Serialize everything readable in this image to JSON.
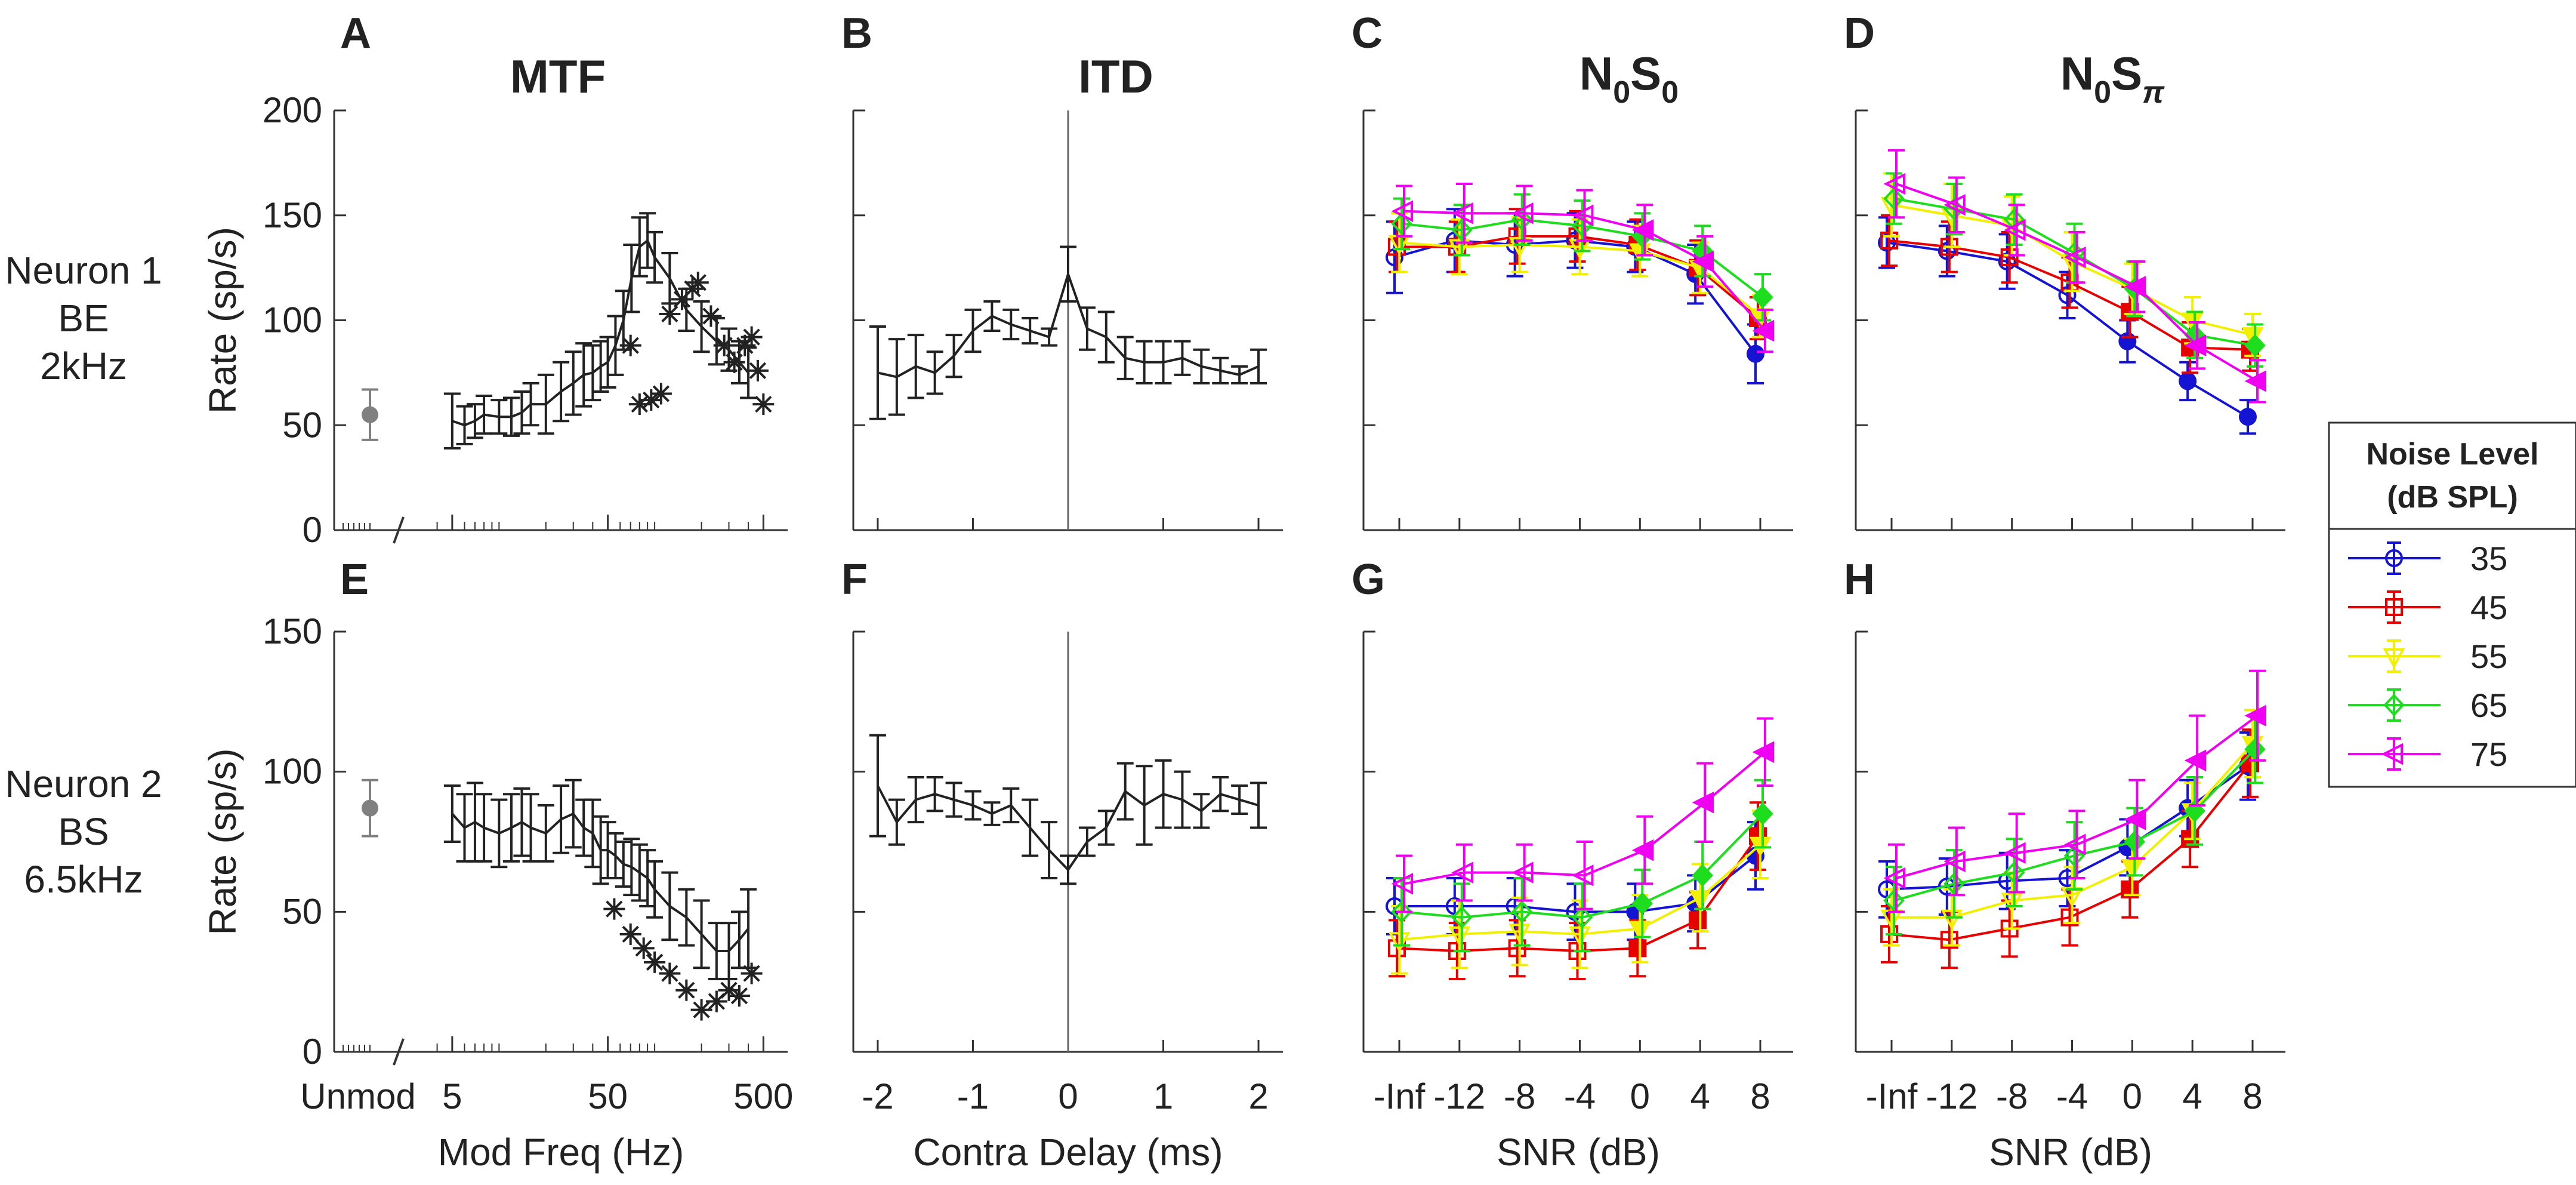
{
  "figure": {
    "row_labels": [
      [
        "Neuron 1",
        "BE",
        "2kHz"
      ],
      [
        "Neuron 2",
        "BS",
        "6.5kHz"
      ]
    ],
    "panel_titles": {
      "mtf": "MTF",
      "itd": "ITD",
      "n0s0": "N0S0",
      "n0spi": "N0Sπ"
    }
  },
  "legend": {
    "title_line1": "Noise Level",
    "title_line2": "(dB SPL)",
    "entries": [
      {
        "label": "35",
        "color": "#1414d2",
        "marker": "circle"
      },
      {
        "label": "45",
        "color": "#e60000",
        "marker": "square"
      },
      {
        "label": "55",
        "color": "#f0f000",
        "marker": "triangle-down"
      },
      {
        "label": "65",
        "color": "#1edc1e",
        "marker": "diamond"
      },
      {
        "label": "75",
        "color": "#f000f0",
        "marker": "triangle-left"
      }
    ]
  },
  "chart_data": [
    {
      "panel": "A",
      "type": "line",
      "title": "MTF",
      "ylabel": "Rate (sp/s)",
      "xlabel": "",
      "xscale": "log",
      "xlim": [
        1,
        600
      ],
      "ylim": [
        0,
        200
      ],
      "yticks": [
        0,
        50,
        100,
        150,
        200
      ],
      "unmod": {
        "value": 55,
        "err": 12,
        "color": "#808080"
      },
      "x": [
        5,
        6,
        7,
        8,
        10,
        12,
        14,
        16,
        20,
        25,
        30,
        35,
        40,
        45,
        50,
        56,
        63,
        71,
        80,
        90,
        100,
        125,
        160,
        200,
        250,
        300,
        350,
        400
      ],
      "values": [
        52,
        50,
        52,
        55,
        54,
        54,
        56,
        60,
        60,
        66,
        70,
        74,
        75,
        78,
        80,
        88,
        100,
        120,
        135,
        138,
        130,
        120,
        105,
        97,
        90,
        86,
        80,
        75
      ],
      "errors": [
        13,
        9,
        8,
        9,
        8,
        9,
        10,
        10,
        14,
        14,
        15,
        15,
        13,
        12,
        12,
        14,
        14,
        16,
        14,
        13,
        12,
        12,
        10,
        12,
        11,
        10,
        10,
        12
      ],
      "sig_x": [
        70,
        80,
        95,
        110,
        125,
        150,
        175,
        190,
        230,
        280,
        325,
        380,
        420,
        460,
        500
      ],
      "sig_y": [
        88,
        60,
        62,
        65,
        103,
        110,
        115,
        118,
        102,
        88,
        80,
        88,
        92,
        76,
        60
      ]
    },
    {
      "panel": "B",
      "type": "line",
      "title": "ITD",
      "ylabel": "",
      "xlabel": "",
      "xlim": [
        -2.1,
        2.1
      ],
      "ylim": [
        0,
        200
      ],
      "vline": 0,
      "x": [
        -2.0,
        -1.8,
        -1.6,
        -1.4,
        -1.2,
        -1.0,
        -0.8,
        -0.6,
        -0.4,
        -0.2,
        0.0,
        0.2,
        0.4,
        0.6,
        0.8,
        1.0,
        1.2,
        1.4,
        1.6,
        1.8,
        2.0
      ],
      "values": [
        75,
        73,
        78,
        75,
        83,
        95,
        102,
        98,
        95,
        92,
        122,
        96,
        92,
        82,
        80,
        80,
        82,
        78,
        76,
        74,
        78
      ],
      "errors": [
        22,
        18,
        15,
        10,
        10,
        10,
        7,
        7,
        6,
        4,
        13,
        10,
        12,
        10,
        10,
        10,
        8,
        8,
        6,
        4,
        8
      ]
    },
    {
      "panel": "C",
      "type": "line",
      "title": "N0S0",
      "xlabel": "",
      "categories": [
        "-Inf",
        "-12",
        "-8",
        "-4",
        "0",
        "4",
        "8"
      ],
      "ylim": [
        0,
        200
      ],
      "series": [
        {
          "name": "35",
          "values": [
            130,
            138,
            136,
            138,
            135,
            122,
            84
          ],
          "errors": [
            17,
            15,
            15,
            13,
            12,
            14,
            14
          ]
        },
        {
          "name": "45",
          "values": [
            135,
            135,
            140,
            140,
            136,
            125,
            101
          ],
          "errors": [
            12,
            12,
            13,
            12,
            12,
            13,
            10
          ]
        },
        {
          "name": "55",
          "values": [
            137,
            135,
            136,
            135,
            133,
            125,
            102
          ],
          "errors": [
            14,
            13,
            13,
            13,
            12,
            12,
            10
          ]
        },
        {
          "name": "65",
          "values": [
            146,
            143,
            148,
            145,
            140,
            133,
            111
          ],
          "errors": [
            12,
            12,
            12,
            12,
            11,
            12,
            11
          ]
        },
        {
          "name": "75",
          "values": [
            152,
            151,
            151,
            150,
            143,
            128,
            95
          ],
          "errors": [
            12,
            14,
            13,
            12,
            12,
            12,
            10
          ]
        }
      ]
    },
    {
      "panel": "D",
      "type": "line",
      "title": "N0Sπ",
      "xlabel": "",
      "categories": [
        "-Inf",
        "-12",
        "-8",
        "-4",
        "0",
        "4",
        "8"
      ],
      "ylim": [
        0,
        200
      ],
      "series": [
        {
          "name": "35",
          "values": [
            137,
            133,
            128,
            112,
            90,
            71,
            54
          ],
          "errors": [
            12,
            12,
            13,
            11,
            10,
            9,
            8
          ]
        },
        {
          "name": "45",
          "values": [
            138,
            135,
            130,
            118,
            104,
            87,
            86
          ],
          "errors": [
            12,
            12,
            12,
            12,
            12,
            12,
            10
          ]
        },
        {
          "name": "55",
          "values": [
            155,
            150,
            145,
            128,
            115,
            100,
            93
          ],
          "errors": [
            15,
            15,
            14,
            14,
            12,
            11,
            10
          ]
        },
        {
          "name": "65",
          "values": [
            158,
            153,
            148,
            132,
            115,
            93,
            88
          ],
          "errors": [
            12,
            12,
            12,
            14,
            13,
            11,
            10
          ]
        },
        {
          "name": "75",
          "values": [
            165,
            155,
            143,
            130,
            116,
            88,
            71
          ],
          "errors": [
            16,
            13,
            12,
            12,
            12,
            11,
            10
          ]
        }
      ]
    },
    {
      "panel": "E",
      "type": "line",
      "ylabel": "Rate (sp/s)",
      "xlabel": "Mod Freq (Hz)",
      "xscale": "log",
      "xlim": [
        1,
        600
      ],
      "ylim": [
        0,
        150
      ],
      "yticks": [
        0,
        50,
        100,
        150
      ],
      "xticklabels": [
        "Unmod",
        "5",
        "50",
        "500"
      ],
      "unmod": {
        "value": 87,
        "err": 10,
        "color": "#808080"
      },
      "x": [
        5,
        6,
        7,
        8,
        10,
        12,
        14,
        16,
        20,
        25,
        30,
        35,
        40,
        45,
        50,
        56,
        63,
        71,
        80,
        90,
        100,
        125,
        160,
        200,
        250,
        300,
        350,
        400
      ],
      "values": [
        85,
        80,
        82,
        80,
        78,
        80,
        82,
        80,
        78,
        83,
        85,
        80,
        78,
        72,
        72,
        70,
        67,
        66,
        64,
        62,
        58,
        52,
        48,
        42,
        36,
        36,
        40,
        44
      ],
      "errors": [
        10,
        12,
        14,
        12,
        12,
        12,
        12,
        12,
        10,
        12,
        12,
        10,
        12,
        12,
        10,
        8,
        8,
        10,
        10,
        10,
        10,
        12,
        10,
        12,
        10,
        10,
        10,
        14
      ],
      "sig_x": [
        55,
        70,
        85,
        100,
        125,
        160,
        200,
        250,
        300,
        350,
        420
      ],
      "sig_y": [
        51,
        42,
        37,
        32,
        28,
        22,
        15,
        18,
        22,
        20,
        28
      ]
    },
    {
      "panel": "F",
      "type": "line",
      "ylabel": "",
      "xlabel": "Contra Delay (ms)",
      "xlim": [
        -2.1,
        2.1
      ],
      "ylim": [
        0,
        150
      ],
      "vline": 0,
      "xticks": [
        -2,
        -1,
        0,
        1,
        2
      ],
      "x": [
        -2.0,
        -1.8,
        -1.6,
        -1.4,
        -1.2,
        -1.0,
        -0.8,
        -0.6,
        -0.4,
        -0.2,
        0.0,
        0.2,
        0.4,
        0.6,
        0.8,
        1.0,
        1.2,
        1.4,
        1.6,
        1.8,
        2.0
      ],
      "values": [
        95,
        82,
        90,
        92,
        90,
        88,
        85,
        88,
        80,
        72,
        65,
        75,
        80,
        93,
        88,
        92,
        90,
        86,
        92,
        90,
        88
      ],
      "errors": [
        18,
        8,
        8,
        6,
        6,
        5,
        4,
        6,
        10,
        10,
        5,
        5,
        6,
        10,
        14,
        12,
        10,
        6,
        6,
        5,
        8
      ]
    },
    {
      "panel": "G",
      "type": "line",
      "xlabel": "SNR (dB)",
      "categories": [
        "-Inf",
        "-12",
        "-8",
        "-4",
        "0",
        "4",
        "8"
      ],
      "ylim": [
        0,
        150
      ],
      "series": [
        {
          "name": "35",
          "values": [
            52,
            52,
            52,
            50,
            50,
            53,
            70
          ],
          "errors": [
            10,
            10,
            10,
            10,
            10,
            10,
            12
          ]
        },
        {
          "name": "45",
          "values": [
            37,
            36,
            37,
            36,
            37,
            47,
            77
          ],
          "errors": [
            10,
            10,
            10,
            10,
            10,
            10,
            12
          ]
        },
        {
          "name": "55",
          "values": [
            40,
            42,
            43,
            42,
            44,
            55,
            74
          ],
          "errors": [
            12,
            12,
            12,
            12,
            12,
            12,
            12
          ]
        },
        {
          "name": "65",
          "values": [
            50,
            48,
            50,
            48,
            53,
            63,
            85
          ],
          "errors": [
            12,
            12,
            12,
            12,
            12,
            12,
            12
          ]
        },
        {
          "name": "75",
          "values": [
            60,
            64,
            64,
            63,
            72,
            89,
            107
          ],
          "errors": [
            10,
            10,
            10,
            12,
            12,
            14,
            12
          ]
        }
      ]
    },
    {
      "panel": "H",
      "type": "line",
      "xlabel": "SNR (dB)",
      "categories": [
        "-Inf",
        "-12",
        "-8",
        "-4",
        "0",
        "4",
        "8"
      ],
      "ylim": [
        0,
        150
      ],
      "series": [
        {
          "name": "35",
          "values": [
            58,
            59,
            61,
            62,
            73,
            87,
            102
          ],
          "errors": [
            10,
            10,
            10,
            10,
            10,
            10,
            12
          ]
        },
        {
          "name": "45",
          "values": [
            42,
            40,
            44,
            48,
            58,
            76,
            103
          ],
          "errors": [
            10,
            10,
            10,
            10,
            10,
            10,
            12
          ]
        },
        {
          "name": "55",
          "values": [
            48,
            48,
            54,
            56,
            66,
            86,
            110
          ],
          "errors": [
            10,
            10,
            10,
            10,
            10,
            10,
            12
          ]
        },
        {
          "name": "65",
          "values": [
            54,
            60,
            64,
            70,
            75,
            86,
            108
          ],
          "errors": [
            12,
            12,
            12,
            12,
            12,
            12,
            12
          ]
        },
        {
          "name": "75",
          "values": [
            62,
            68,
            71,
            74,
            83,
            104,
            120
          ],
          "errors": [
            12,
            12,
            14,
            12,
            14,
            16,
            16
          ]
        }
      ]
    }
  ]
}
